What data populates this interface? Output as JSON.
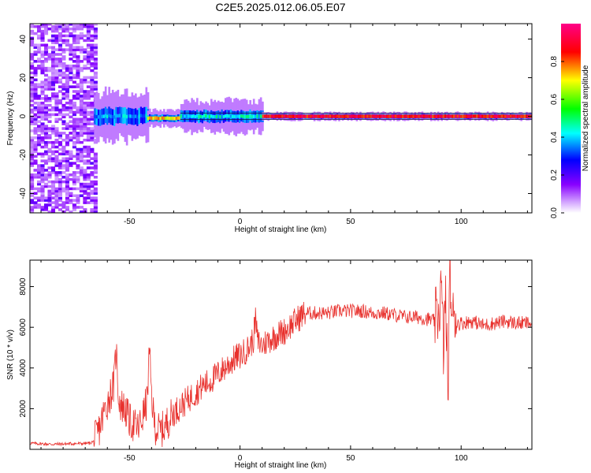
{
  "figure": {
    "title": "C2E5.2025.012.06.05.E07"
  },
  "chart_data": [
    {
      "type": "heatmap",
      "xlabel": "Height of straight line (km)",
      "ylabel": "Frequency (Hz)",
      "xlim": [
        -95,
        132
      ],
      "ylim": [
        -50,
        48
      ],
      "xticks": [
        -50,
        0,
        50,
        100
      ],
      "yticks": [
        -40,
        -20,
        0,
        20,
        40
      ],
      "colorbar": {
        "label": "Normalized spectral amplitude",
        "range": [
          0,
          1
        ],
        "ticks": [
          0.0,
          0.2,
          0.4,
          0.6,
          0.8
        ],
        "tick_labels": [
          "0.0",
          "0.2",
          "0.4",
          "0.6",
          "0.8"
        ],
        "colormap": [
          "#ffffff",
          "#8800ff",
          "#0000ff",
          "#00ffff",
          "#00ff00",
          "#ffff00",
          "#ff0000",
          "#ff0088"
        ]
      },
      "regions": [
        {
          "x_range": [
            -95,
            -66
          ],
          "description_level": "broadband noise",
          "level": 0.25
        },
        {
          "x_range": [
            -66,
            -42
          ],
          "center_hz": 0,
          "spread_hz": 3,
          "level": 0.45
        },
        {
          "x_range": [
            -42,
            -27
          ],
          "center_hz": -1,
          "spread_hz": 1,
          "level": 0.8
        },
        {
          "x_range": [
            -27,
            10
          ],
          "center_hz": 0,
          "spread_hz": 2,
          "level": 0.5
        },
        {
          "x_range": [
            10,
            132
          ],
          "center_hz": 0,
          "spread_hz": 0.5,
          "level": 0.95
        }
      ],
      "grid": false
    },
    {
      "type": "line",
      "xlabel": "Height of straight line (km)",
      "ylabel": "SNR (10 * v/v)",
      "xlim": [
        -95,
        132
      ],
      "ylim": [
        0,
        9300
      ],
      "xticks": [
        -50,
        0,
        50,
        100
      ],
      "yticks": [
        2000,
        4000,
        6000,
        8000
      ],
      "color": "#e8302c",
      "grid": false,
      "series": [
        {
          "x": [
            -95,
            -85,
            -75,
            -68,
            -66,
            -64,
            -62,
            -60,
            -58,
            -57,
            -56,
            -55,
            -54,
            -52,
            -50,
            -48,
            -46,
            -44,
            -42,
            -41,
            -40,
            -39,
            -38,
            -36,
            -34,
            -32,
            -30,
            -28,
            -26,
            -24,
            -22,
            -20,
            -18,
            -16,
            -14,
            -12,
            -10,
            -8,
            -6,
            -4,
            -2,
            0,
            2,
            4,
            6,
            7,
            8,
            10,
            12,
            15,
            18,
            20,
            22,
            25,
            28,
            30,
            35,
            40,
            45,
            50,
            55,
            60,
            65,
            70,
            75,
            80,
            85,
            88,
            90,
            91,
            92,
            93,
            94,
            95,
            96,
            97,
            98,
            100,
            105,
            110,
            115,
            120,
            125,
            132
          ],
          "y": [
            300,
            250,
            280,
            300,
            400,
            900,
            1600,
            2300,
            2900,
            3200,
            5000,
            2700,
            2200,
            2000,
            1400,
            1200,
            1000,
            1600,
            2400,
            4800,
            2700,
            1500,
            1000,
            900,
            1100,
            1500,
            1800,
            2000,
            2200,
            2400,
            2600,
            2800,
            3000,
            3200,
            3300,
            3500,
            3700,
            3900,
            4100,
            4300,
            4500,
            4600,
            4800,
            5000,
            5400,
            6400,
            5300,
            5100,
            5300,
            5500,
            5700,
            5800,
            6000,
            6300,
            6600,
            6700,
            6700,
            6700,
            6800,
            6800,
            6800,
            6700,
            6700,
            6600,
            6500,
            6500,
            6400,
            6300,
            6800,
            8000,
            5000,
            7500,
            2800,
            8800,
            6000,
            7000,
            6200,
            6200,
            6300,
            6100,
            6200,
            6300,
            6200,
            6200
          ]
        }
      ]
    }
  ]
}
